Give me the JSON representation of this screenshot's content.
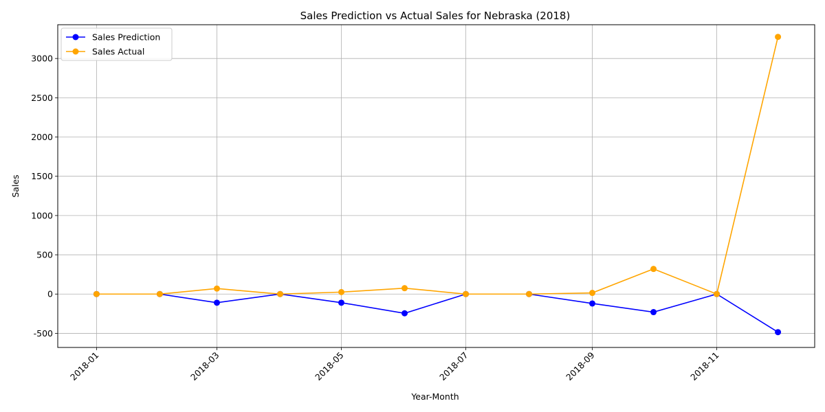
{
  "chart_data": {
    "type": "line",
    "title": "Sales Prediction vs Actual Sales for Nebraska (2018)",
    "xlabel": "Year-Month",
    "ylabel": "Sales",
    "x": [
      "2018-01-01",
      "2018-02-01",
      "2018-03-01",
      "2018-04-01",
      "2018-05-01",
      "2018-06-01",
      "2018-07-01",
      "2018-08-01",
      "2018-09-01",
      "2018-10-01",
      "2018-11-01",
      "2018-12-01"
    ],
    "x_ticks": [
      "2018-01",
      "2018-03",
      "2018-05",
      "2018-07",
      "2018-09",
      "2018-11"
    ],
    "y_ticks": [
      -500,
      0,
      500,
      1000,
      1500,
      2000,
      2500,
      3000
    ],
    "ylim": [
      -680,
      3430
    ],
    "xlim": [
      "2017-12-13",
      "2018-12-19"
    ],
    "grid": true,
    "legend_position": "top-left",
    "series": [
      {
        "name": "Sales Prediction",
        "color": "#0000ff",
        "values": [
          0,
          0,
          -110,
          0,
          -110,
          -245,
          0,
          0,
          -120,
          -230,
          0,
          -485
        ]
      },
      {
        "name": "Sales Actual",
        "color": "#ffa500",
        "values": [
          0,
          0,
          70,
          0,
          25,
          75,
          0,
          0,
          15,
          320,
          0,
          3275
        ]
      }
    ]
  }
}
